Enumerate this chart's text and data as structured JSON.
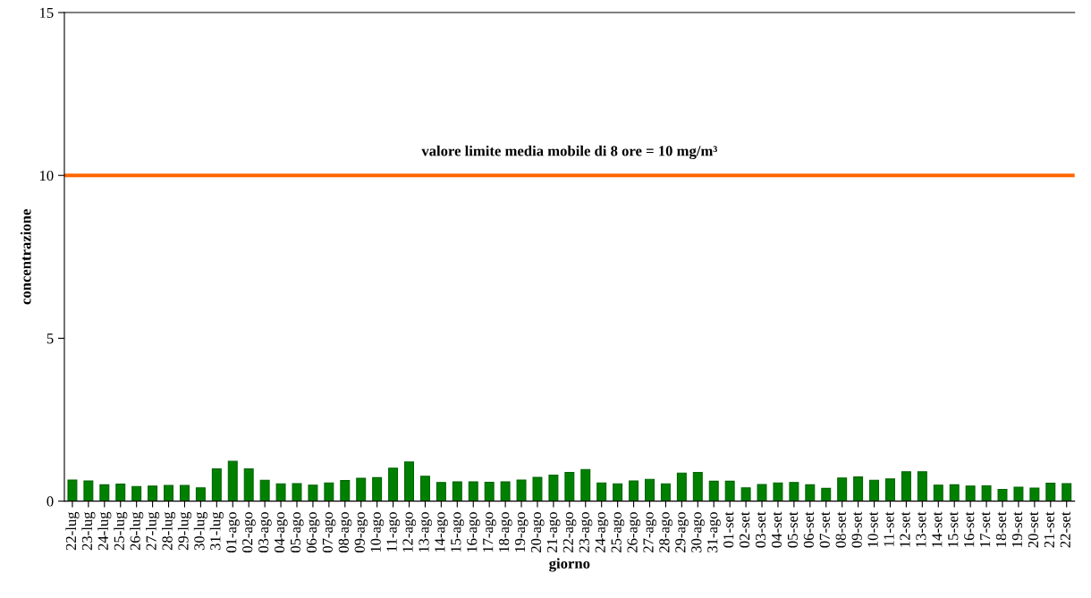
{
  "chart_data": {
    "type": "bar",
    "xlabel": "giorno",
    "ylabel": "concentrazione",
    "categories": [
      "22-lug",
      "23-lug",
      "24-lug",
      "25-lug",
      "26-lug",
      "27-lug",
      "28-lug",
      "29-lug",
      "30-lug",
      "31-lug",
      "01-ago",
      "02-ago",
      "03-ago",
      "04-ago",
      "05-ago",
      "06-ago",
      "07-ago",
      "08-ago",
      "09-ago",
      "10-ago",
      "11-ago",
      "12-ago",
      "13-ago",
      "14-ago",
      "15-ago",
      "16-ago",
      "17-ago",
      "18-ago",
      "19-ago",
      "20-ago",
      "21-ago",
      "22-ago",
      "23-ago",
      "24-ago",
      "25-ago",
      "26-ago",
      "27-ago",
      "28-ago",
      "29-ago",
      "30-ago",
      "31-ago",
      "01-set",
      "02-set",
      "03-set",
      "04-set",
      "05-set",
      "06-set",
      "07-set",
      "08-set",
      "09-set",
      "10-set",
      "11-set",
      "12-set",
      "13-set",
      "14-set",
      "15-set",
      "16-set",
      "17-set",
      "18-set",
      "19-set",
      "20-set",
      "21-set",
      "22-set"
    ],
    "values": [
      0.65,
      0.62,
      0.5,
      0.52,
      0.45,
      0.46,
      0.48,
      0.48,
      0.41,
      0.99,
      1.22,
      0.99,
      0.64,
      0.53,
      0.54,
      0.49,
      0.56,
      0.63,
      0.7,
      0.72,
      1.01,
      1.2,
      0.76,
      0.57,
      0.59,
      0.59,
      0.58,
      0.59,
      0.65,
      0.73,
      0.8,
      0.88,
      0.97,
      0.56,
      0.53,
      0.62,
      0.67,
      0.53,
      0.86,
      0.88,
      0.61,
      0.61,
      0.41,
      0.51,
      0.56,
      0.57,
      0.5,
      0.39,
      0.71,
      0.74,
      0.64,
      0.68,
      0.9,
      0.9,
      0.49,
      0.5,
      0.46,
      0.47,
      0.36,
      0.43,
      0.4,
      0.55,
      0.54
    ],
    "color": "#008000",
    "ylim": [
      0,
      15
    ],
    "yticks": [
      0,
      5,
      10,
      15
    ],
    "ref_lines": [
      {
        "axis": "y",
        "value": 10,
        "label": "valore limite media mobile di 8 ore = 10 mg/m³",
        "color": "#ff6600",
        "line_style": "solid"
      }
    ],
    "grid": false,
    "legend": false
  }
}
